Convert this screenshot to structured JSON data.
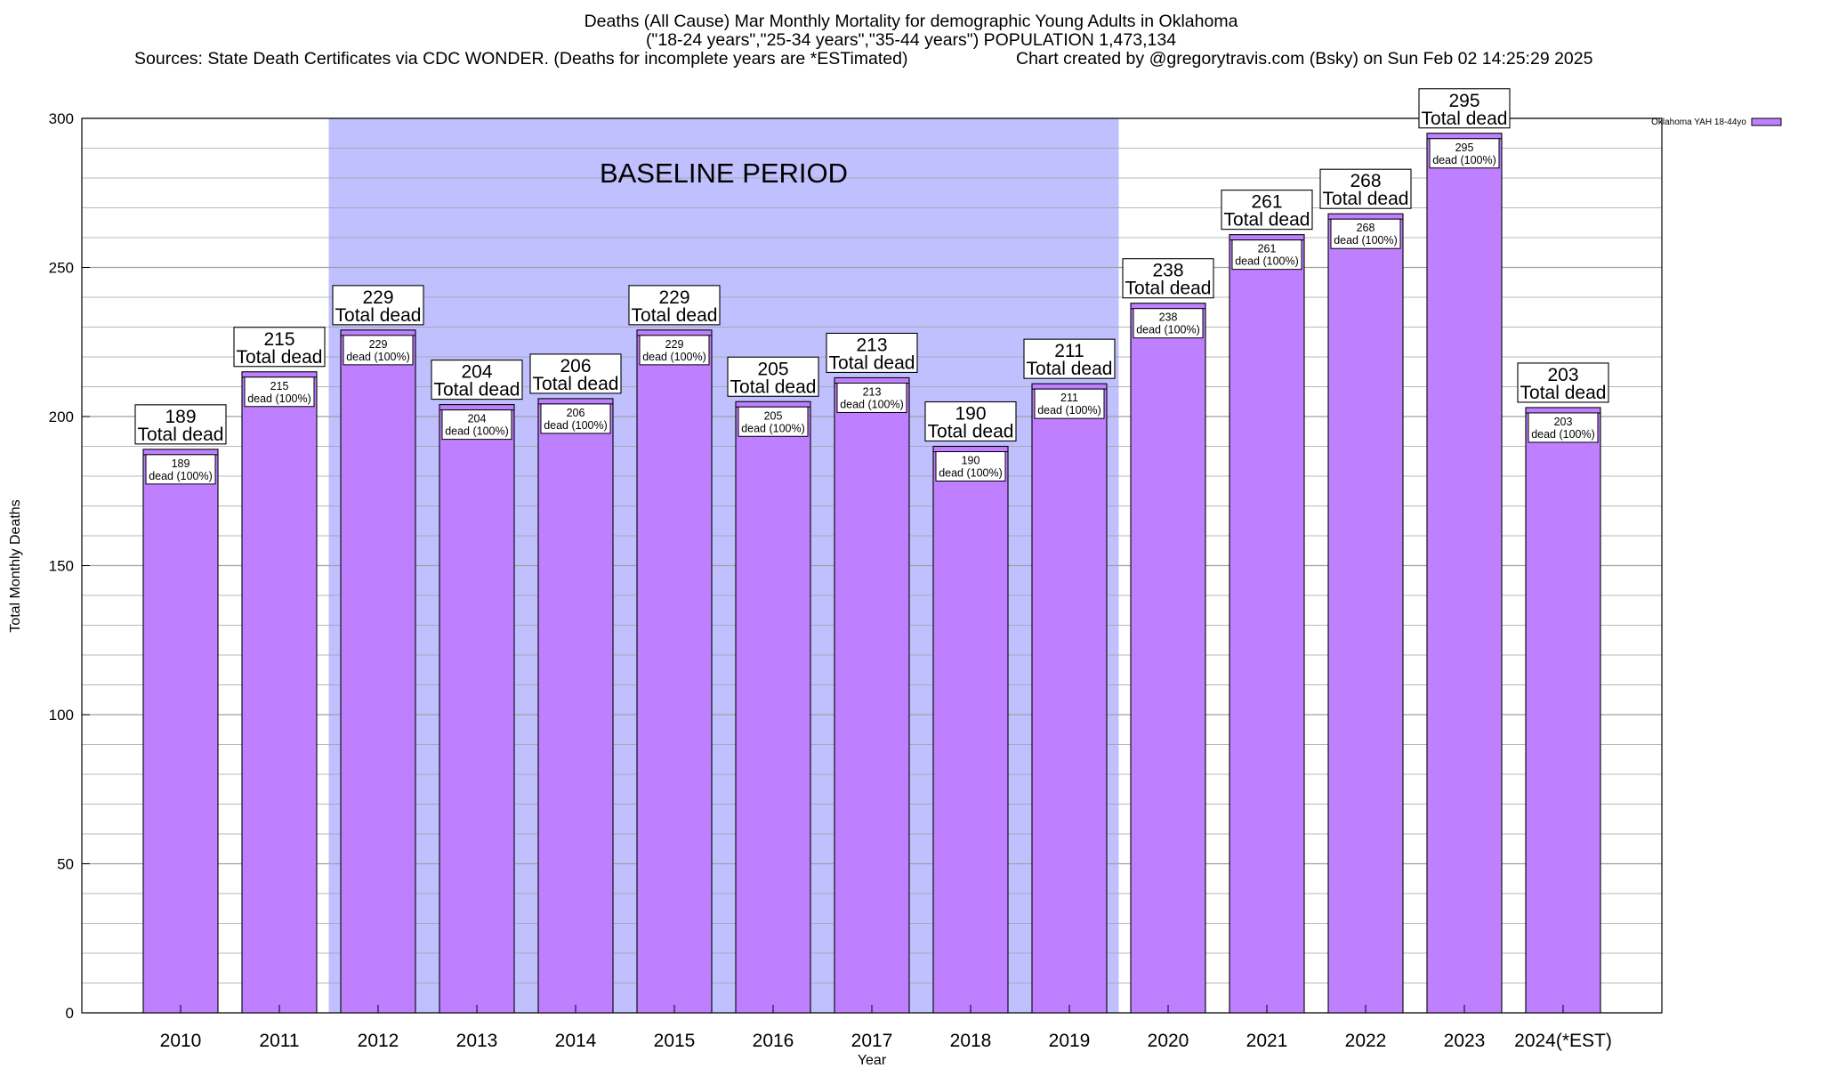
{
  "header": {
    "title_line1": "Deaths (All Cause) Mar Monthly Mortality for demographic Young Adults in Oklahoma",
    "title_line2": "(\"18-24 years\",\"25-34 years\",\"35-44 years\") POPULATION 1,473,134",
    "sources": "Sources: State Death Certificates via CDC WONDER. (Deaths for incomplete years are *ESTimated)",
    "credit": "Chart created by @gregorytravis.com (Bsky) on Sun Feb 02 14:25:29 2025"
  },
  "chart_data": {
    "type": "bar",
    "title": "Deaths (All Cause) Mar Monthly Mortality for demographic Young Adults in Oklahoma",
    "xlabel": "Year",
    "ylabel": "Total Monthly Deaths",
    "ylim": [
      0,
      300
    ],
    "y_ticks": [
      0,
      50,
      100,
      150,
      200,
      250,
      300
    ],
    "grid": true,
    "legend": {
      "position": "top-right",
      "label": "Oklahoma YAH 18-44yo"
    },
    "categories": [
      "2010",
      "2011",
      "2012",
      "2013",
      "2014",
      "2015",
      "2016",
      "2017",
      "2018",
      "2019",
      "2020",
      "2021",
      "2022",
      "2023",
      "2024(*EST)"
    ],
    "series": [
      {
        "name": "Oklahoma YAH 18-44yo",
        "values": [
          189,
          215,
          229,
          204,
          206,
          229,
          205,
          213,
          190,
          211,
          238,
          261,
          268,
          295,
          203
        ]
      }
    ],
    "top_label_suffix": "Total dead",
    "inner_label_suffix": "dead (100%)",
    "baseline": {
      "label": "BASELINE PERIOD",
      "start": "2012",
      "end": "2019"
    },
    "colors": {
      "bar": "#bf80ff",
      "baseline": "#c0c0ff",
      "grid": "#a0a0a0"
    }
  }
}
